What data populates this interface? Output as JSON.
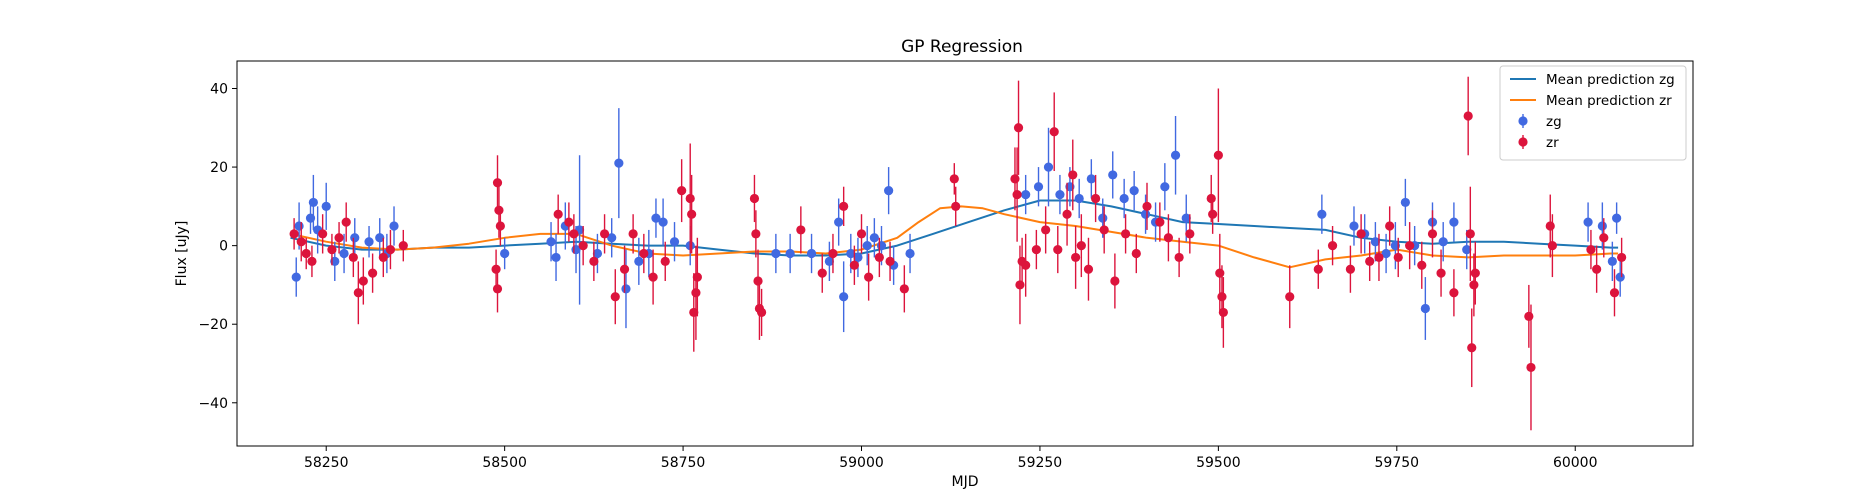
{
  "chart_data": {
    "type": "scatter",
    "title": "GP Regression",
    "xlabel": "MJD",
    "ylabel": "Flux [uJy]",
    "xlim": [
      58125,
      60165
    ],
    "ylim": [
      -51,
      47
    ],
    "xticks": [
      58250,
      58500,
      58750,
      59000,
      59250,
      59500,
      59750,
      60000
    ],
    "yticks": [
      -40,
      -20,
      0,
      20,
      40
    ],
    "grid": false,
    "legend_position": "upper right",
    "colors": {
      "zg_line": "#1f77b4",
      "zr_line": "#ff7f0e",
      "zg_points": "#4169e1",
      "zr_points": "#dc143c"
    },
    "legend": [
      {
        "label": "Mean prediction zg",
        "kind": "line",
        "color": "#1f77b4"
      },
      {
        "label": "Mean prediction zr",
        "kind": "line",
        "color": "#ff7f0e"
      },
      {
        "label": "zg",
        "kind": "errorbar",
        "color": "#4169e1"
      },
      {
        "label": "zr",
        "kind": "errorbar",
        "color": "#dc143c"
      }
    ],
    "series": [
      {
        "name": "Mean prediction zg",
        "kind": "line",
        "color": "#1f77b4",
        "x": [
          58200,
          58250,
          58300,
          58350,
          58400,
          58450,
          58500,
          58550,
          58600,
          58650,
          58700,
          58750,
          58800,
          58850,
          58900,
          58950,
          59000,
          59050,
          59100,
          59150,
          59200,
          59250,
          59300,
          59350,
          59400,
          59450,
          59500,
          59550,
          59600,
          59650,
          59700,
          59750,
          59800,
          59850,
          59900,
          59950,
          60000,
          60050,
          60060
        ],
        "y": [
          2,
          0,
          -1,
          -1,
          -0.5,
          -0.5,
          0,
          0.5,
          1,
          0.5,
          0,
          0,
          -1,
          -2,
          -2.5,
          -2.5,
          -2,
          0,
          3,
          6,
          9,
          11.5,
          11.5,
          10,
          8,
          6,
          5.5,
          5,
          4.5,
          4,
          2,
          1,
          0.5,
          1,
          1,
          0.5,
          0,
          -0.5,
          -0.5
        ]
      },
      {
        "name": "Mean prediction zr",
        "kind": "line",
        "color": "#ff7f0e",
        "x": [
          58200,
          58250,
          58300,
          58350,
          58400,
          58450,
          58500,
          58550,
          58600,
          58650,
          58700,
          58750,
          58800,
          58850,
          58900,
          58950,
          59000,
          59050,
          59080,
          59110,
          59140,
          59170,
          59200,
          59250,
          59300,
          59350,
          59400,
          59450,
          59500,
          59550,
          59600,
          59650,
          59700,
          59750,
          59800,
          59850,
          59900,
          59950,
          60000,
          60050,
          60060
        ],
        "y": [
          3,
          1,
          -0.5,
          -1,
          -0.5,
          0.5,
          2,
          3,
          3,
          0,
          -2,
          -2.5,
          -2,
          -1.5,
          -1.5,
          -2,
          -1,
          2,
          6,
          9.5,
          10,
          9.5,
          8,
          6,
          5,
          3.5,
          2,
          1,
          0,
          -3,
          -5.5,
          -3.5,
          -2.5,
          -1,
          -2.5,
          -3,
          -2.5,
          -2.5,
          -2.5,
          -2,
          -2
        ]
      },
      {
        "name": "zg",
        "kind": "errorbar",
        "color": "#4169e1",
        "points": [
          [
            58208,
            -8,
            5
          ],
          [
            58212,
            5,
            6
          ],
          [
            58228,
            7,
            4
          ],
          [
            58232,
            11,
            7
          ],
          [
            58238,
            4,
            6
          ],
          [
            58250,
            10,
            6
          ],
          [
            58262,
            -4,
            5
          ],
          [
            58275,
            -2,
            5
          ],
          [
            58290,
            2,
            5
          ],
          [
            58310,
            1,
            4
          ],
          [
            58325,
            2,
            5
          ],
          [
            58335,
            -2,
            5
          ],
          [
            58345,
            5,
            5
          ],
          [
            58500,
            -2,
            4
          ],
          [
            58565,
            1,
            5
          ],
          [
            58572,
            -3,
            6
          ],
          [
            58585,
            5,
            6
          ],
          [
            58600,
            -1,
            6
          ],
          [
            58605,
            4,
            19
          ],
          [
            58630,
            -2,
            5
          ],
          [
            58650,
            2,
            5
          ],
          [
            58660,
            21,
            14
          ],
          [
            58670,
            -11,
            10
          ],
          [
            58688,
            -4,
            6
          ],
          [
            58702,
            -2,
            6
          ],
          [
            58712,
            7,
            5
          ],
          [
            58722,
            6,
            6
          ],
          [
            58738,
            1,
            5
          ],
          [
            58760,
            0,
            5
          ],
          [
            58880,
            -2,
            5
          ],
          [
            58900,
            -2,
            5
          ],
          [
            58930,
            -2,
            5
          ],
          [
            58955,
            -4,
            5
          ],
          [
            58968,
            6,
            6
          ],
          [
            58975,
            -13,
            9
          ],
          [
            58985,
            -2,
            5
          ],
          [
            58995,
            -3,
            5
          ],
          [
            59008,
            0,
            5
          ],
          [
            59018,
            2,
            5
          ],
          [
            59028,
            0,
            5
          ],
          [
            59038,
            14,
            6
          ],
          [
            59045,
            -5,
            5
          ],
          [
            59068,
            -2,
            5
          ],
          [
            59230,
            13,
            5
          ],
          [
            59248,
            15,
            5
          ],
          [
            59262,
            20,
            10
          ],
          [
            59278,
            13,
            5
          ],
          [
            59292,
            15,
            5
          ],
          [
            59305,
            12,
            5
          ],
          [
            59322,
            17,
            5
          ],
          [
            59338,
            7,
            5
          ],
          [
            59352,
            18,
            6
          ],
          [
            59368,
            12,
            5
          ],
          [
            59382,
            14,
            5
          ],
          [
            59398,
            8,
            5
          ],
          [
            59412,
            6,
            5
          ],
          [
            59425,
            15,
            6
          ],
          [
            59440,
            23,
            10
          ],
          [
            59455,
            7,
            6
          ],
          [
            59645,
            8,
            5
          ],
          [
            59690,
            5,
            5
          ],
          [
            59705,
            3,
            5
          ],
          [
            59720,
            1,
            5
          ],
          [
            59735,
            -2,
            5
          ],
          [
            59748,
            0,
            6
          ],
          [
            59762,
            11,
            6
          ],
          [
            59775,
            0,
            5
          ],
          [
            59790,
            -16,
            8
          ],
          [
            59800,
            6,
            5
          ],
          [
            59815,
            1,
            5
          ],
          [
            59830,
            6,
            5
          ],
          [
            59848,
            -1,
            5
          ],
          [
            60018,
            6,
            5
          ],
          [
            60038,
            5,
            6
          ],
          [
            60052,
            -4,
            5
          ],
          [
            60058,
            7,
            4
          ],
          [
            60063,
            -8,
            5
          ]
        ]
      },
      {
        "name": "zr",
        "kind": "errorbar",
        "color": "#dc143c",
        "points": [
          [
            58205,
            3,
            4
          ],
          [
            58215,
            1,
            5
          ],
          [
            58222,
            -2,
            4
          ],
          [
            58230,
            -4,
            4
          ],
          [
            58245,
            3,
            5
          ],
          [
            58258,
            -1,
            4
          ],
          [
            58268,
            2,
            4
          ],
          [
            58278,
            6,
            5
          ],
          [
            58288,
            -3,
            5
          ],
          [
            58295,
            -12,
            8
          ],
          [
            58302,
            -9,
            6
          ],
          [
            58315,
            -7,
            5
          ],
          [
            58330,
            -3,
            5
          ],
          [
            58340,
            -1,
            5
          ],
          [
            58358,
            0,
            4
          ],
          [
            58490,
            16,
            7
          ],
          [
            58492,
            9,
            7
          ],
          [
            58494,
            5,
            5
          ],
          [
            58488,
            -6,
            5
          ],
          [
            58490,
            -11,
            6
          ],
          [
            58575,
            8,
            5
          ],
          [
            58590,
            6,
            5
          ],
          [
            58597,
            3,
            5
          ],
          [
            58610,
            0,
            5
          ],
          [
            58625,
            -4,
            5
          ],
          [
            58640,
            3,
            5
          ],
          [
            58655,
            -13,
            7
          ],
          [
            58668,
            -6,
            6
          ],
          [
            58680,
            3,
            5
          ],
          [
            58695,
            -2,
            5
          ],
          [
            58708,
            -8,
            7
          ],
          [
            58725,
            -4,
            5
          ],
          [
            58748,
            14,
            8
          ],
          [
            58760,
            12,
            14
          ],
          [
            58762,
            8,
            10
          ],
          [
            58765,
            -17,
            10
          ],
          [
            58768,
            -12,
            12
          ],
          [
            58770,
            -8,
            10
          ],
          [
            58850,
            12,
            6
          ],
          [
            58852,
            3,
            6
          ],
          [
            58855,
            -9,
            8
          ],
          [
            58857,
            -16,
            8
          ],
          [
            58860,
            -17,
            6
          ],
          [
            58915,
            4,
            6
          ],
          [
            58945,
            -7,
            5
          ],
          [
            58960,
            -2,
            5
          ],
          [
            58975,
            10,
            5
          ],
          [
            58990,
            -5,
            5
          ],
          [
            59000,
            3,
            5
          ],
          [
            59010,
            -8,
            6
          ],
          [
            59025,
            -3,
            5
          ],
          [
            59040,
            -4,
            5
          ],
          [
            59060,
            -11,
            6
          ],
          [
            59130,
            17,
            4
          ],
          [
            59132,
            10,
            5
          ],
          [
            59215,
            17,
            8
          ],
          [
            59218,
            13,
            12
          ],
          [
            59220,
            30,
            12
          ],
          [
            59222,
            -10,
            10
          ],
          [
            59225,
            -4,
            6
          ],
          [
            59230,
            -5,
            8
          ],
          [
            59245,
            -1,
            5
          ],
          [
            59258,
            4,
            6
          ],
          [
            59270,
            29,
            10
          ],
          [
            59275,
            -1,
            6
          ],
          [
            59288,
            8,
            8
          ],
          [
            59296,
            18,
            9
          ],
          [
            59300,
            -3,
            8
          ],
          [
            59308,
            0,
            8
          ],
          [
            59318,
            -6,
            8
          ],
          [
            59328,
            12,
            6
          ],
          [
            59340,
            4,
            6
          ],
          [
            59355,
            -9,
            7
          ],
          [
            59370,
            3,
            5
          ],
          [
            59385,
            -2,
            5
          ],
          [
            59400,
            10,
            6
          ],
          [
            59418,
            6,
            5
          ],
          [
            59430,
            2,
            6
          ],
          [
            59445,
            -3,
            5
          ],
          [
            59460,
            3,
            5
          ],
          [
            59490,
            12,
            6
          ],
          [
            59492,
            8,
            5
          ],
          [
            59500,
            23,
            17
          ],
          [
            59502,
            -7,
            10
          ],
          [
            59505,
            -13,
            8
          ],
          [
            59507,
            -17,
            9
          ],
          [
            59600,
            -13,
            8
          ],
          [
            59640,
            -6,
            5
          ],
          [
            59660,
            0,
            5
          ],
          [
            59685,
            -6,
            6
          ],
          [
            59700,
            3,
            5
          ],
          [
            59712,
            -4,
            5
          ],
          [
            59725,
            -3,
            6
          ],
          [
            59740,
            5,
            5
          ],
          [
            59752,
            -3,
            5
          ],
          [
            59768,
            0,
            6
          ],
          [
            59785,
            -5,
            6
          ],
          [
            59800,
            3,
            6
          ],
          [
            59812,
            -7,
            6
          ],
          [
            59830,
            -12,
            6
          ],
          [
            59850,
            33,
            10
          ],
          [
            59853,
            3,
            12
          ],
          [
            59855,
            -26,
            10
          ],
          [
            59858,
            -10,
            8
          ],
          [
            59860,
            -7,
            8
          ],
          [
            59935,
            -18,
            8
          ],
          [
            59938,
            -31,
            16
          ],
          [
            59965,
            5,
            8
          ],
          [
            59968,
            0,
            8
          ],
          [
            60022,
            -1,
            5
          ],
          [
            60030,
            -6,
            6
          ],
          [
            60040,
            2,
            5
          ],
          [
            60055,
            -12,
            6
          ],
          [
            60065,
            -3,
            5
          ]
        ]
      }
    ]
  }
}
